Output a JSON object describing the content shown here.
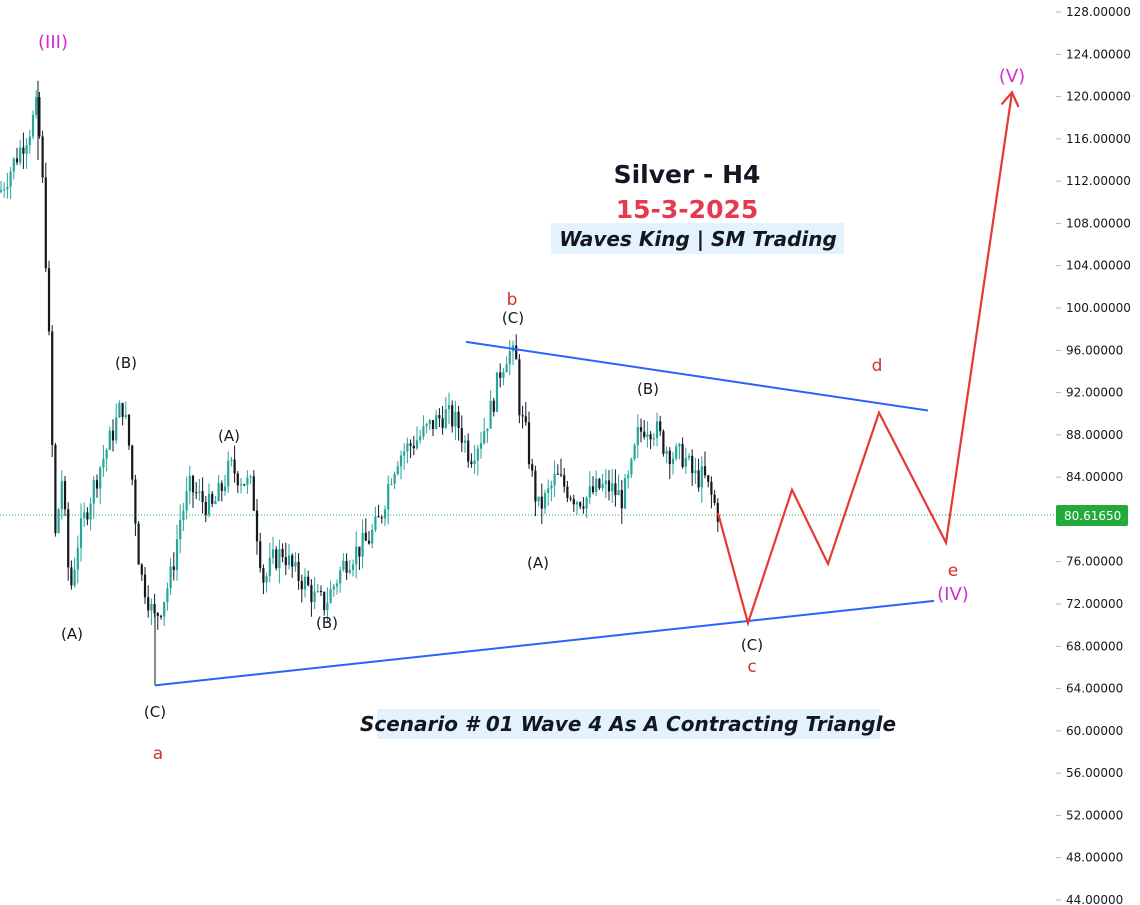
{
  "title": "Silver - H4",
  "date": "15-3-2025",
  "brand": "Waves King | SM Trading",
  "scenario": "Scenario # 01 Wave 4 As A Contracting Triangle",
  "current_price": "80.61650",
  "colors": {
    "up_candle": "#26a69a",
    "down_candle": "#131722",
    "trendline": "#2962ff",
    "projection": "#e53935",
    "wave_red": "#d32f2f",
    "wave_magenta": "#d12ad1",
    "label_box": "#e3f2fd",
    "price_tag": "#22ab3c"
  },
  "chart_data": {
    "type": "candlestick",
    "title": "Silver - H4",
    "y_ticks": [
      "44.00000",
      "48.00000",
      "52.00000",
      "56.00000",
      "60.00000",
      "64.00000",
      "68.00000",
      "72.00000",
      "76.00000",
      "80.00000",
      "84.00000",
      "88.00000",
      "92.00000",
      "96.00000",
      "100.00000",
      "104.00000",
      "108.00000",
      "112.00000",
      "116.00000",
      "120.00000",
      "124.00000",
      "128.00000"
    ],
    "ylim": [
      44,
      128
    ],
    "price_path": [
      [
        0,
        111
      ],
      [
        15,
        114
      ],
      [
        30,
        117
      ],
      [
        37,
        119
      ],
      [
        42,
        113
      ],
      [
        48,
        100
      ],
      [
        55,
        78
      ],
      [
        62,
        84
      ],
      [
        70,
        73
      ],
      [
        78,
        78
      ],
      [
        90,
        82
      ],
      [
        100,
        85
      ],
      [
        112,
        88
      ],
      [
        122,
        91
      ],
      [
        128,
        88
      ],
      [
        133,
        83
      ],
      [
        140,
        75
      ],
      [
        147,
        73
      ],
      [
        154,
        70.5
      ],
      [
        162,
        72
      ],
      [
        172,
        75
      ],
      [
        180,
        80
      ],
      [
        190,
        83
      ],
      [
        200,
        82
      ],
      [
        212,
        81
      ],
      [
        222,
        83
      ],
      [
        230,
        85
      ],
      [
        240,
        84
      ],
      [
        252,
        83
      ],
      [
        258,
        78
      ],
      [
        264,
        74
      ],
      [
        272,
        76
      ],
      [
        283,
        77
      ],
      [
        294,
        75
      ],
      [
        305,
        74
      ],
      [
        315,
        72.5
      ],
      [
        325,
        72
      ],
      [
        335,
        74
      ],
      [
        345,
        76
      ],
      [
        356,
        77
      ],
      [
        368,
        78
      ],
      [
        380,
        80
      ],
      [
        390,
        84
      ],
      [
        398,
        86
      ],
      [
        410,
        87
      ],
      [
        422,
        88
      ],
      [
        432,
        89
      ],
      [
        445,
        90
      ],
      [
        458,
        89
      ],
      [
        470,
        86
      ],
      [
        482,
        88
      ],
      [
        493,
        91
      ],
      [
        500,
        94
      ],
      [
        508,
        96
      ],
      [
        516,
        95
      ],
      [
        520,
        90
      ],
      [
        526,
        88
      ],
      [
        532,
        84
      ],
      [
        538,
        81
      ],
      [
        546,
        82
      ],
      [
        556,
        84
      ],
      [
        566,
        83
      ],
      [
        576,
        82
      ],
      [
        586,
        82
      ],
      [
        598,
        83
      ],
      [
        610,
        83
      ],
      [
        622,
        82
      ],
      [
        630,
        84
      ],
      [
        638,
        88
      ],
      [
        646,
        89
      ],
      [
        656,
        88.5
      ],
      [
        664,
        87
      ],
      [
        674,
        86
      ],
      [
        684,
        86
      ],
      [
        694,
        84
      ],
      [
        704,
        84
      ],
      [
        712,
        82
      ],
      [
        718,
        80.6
      ]
    ],
    "projection": {
      "wave_path": [
        [
          718,
          80.6
        ],
        [
          748,
          70.2
        ],
        [
          792,
          82.8
        ],
        [
          828,
          75.8
        ],
        [
          879,
          90.1
        ],
        [
          946,
          77.8
        ],
        [
          1012,
          120.4
        ]
      ],
      "upper_trendline": [
        [
          466,
          96.8
        ],
        [
          928,
          90.3
        ]
      ],
      "lower_trendline": [
        [
          155,
          64.3
        ],
        [
          934,
          72.3
        ]
      ]
    },
    "wave_labels": {
      "black": [
        {
          "text": "(B)",
          "x": 126,
          "y": 368
        },
        {
          "text": "(A)",
          "x": 229,
          "y": 441
        },
        {
          "text": "(A)",
          "x": 72,
          "y": 639
        },
        {
          "text": "(B)",
          "x": 327,
          "y": 628
        },
        {
          "text": "(C)",
          "x": 155,
          "y": 717
        },
        {
          "text": "(C)",
          "x": 513,
          "y": 323
        },
        {
          "text": "(B)",
          "x": 648,
          "y": 394
        },
        {
          "text": "(A)",
          "x": 538,
          "y": 568
        },
        {
          "text": "(C)",
          "x": 752,
          "y": 650
        }
      ],
      "red": [
        {
          "text": "b",
          "x": 512,
          "y": 305
        },
        {
          "text": "d",
          "x": 877,
          "y": 371
        },
        {
          "text": "e",
          "x": 953,
          "y": 576
        },
        {
          "text": "c",
          "x": 752,
          "y": 672
        },
        {
          "text": "a",
          "x": 158,
          "y": 759
        }
      ],
      "magenta": [
        {
          "text": "(III)",
          "x": 53,
          "y": 48
        },
        {
          "text": "(V)",
          "x": 1012,
          "y": 82
        },
        {
          "text": "(IV)",
          "x": 953,
          "y": 600
        }
      ]
    }
  }
}
